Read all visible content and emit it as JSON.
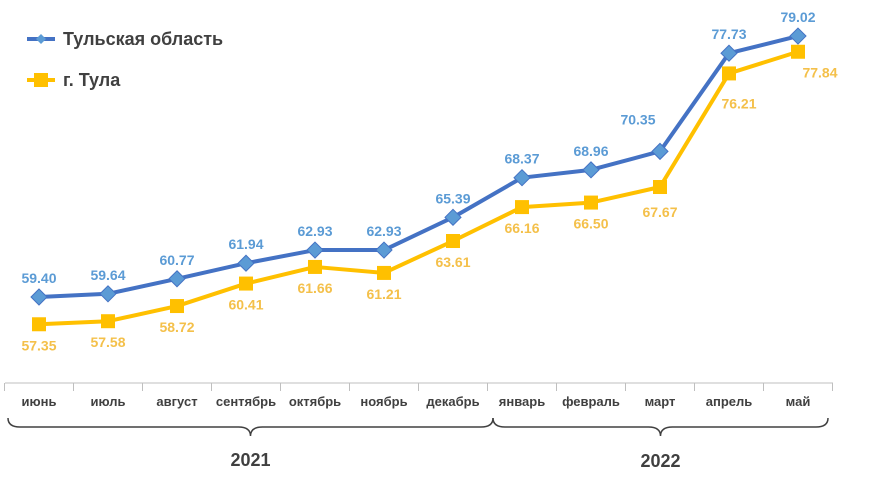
{
  "chart_data": {
    "type": "line",
    "categories": [
      "июнь",
      "июль",
      "август",
      "сентябрь",
      "октябрь",
      "ноябрь",
      "декабрь",
      "январь",
      "февраль",
      "март",
      "апрель",
      "май"
    ],
    "groups": [
      {
        "label": "2021",
        "from": 0,
        "to": 6
      },
      {
        "label": "2022",
        "from": 7,
        "to": 11
      }
    ],
    "series": [
      {
        "name": "Тульская область",
        "color": "#4472C4",
        "marker_color": "#5B9BD5",
        "label_color": "#5B9BD5",
        "marker": "diamond",
        "values": [
          59.4,
          59.64,
          60.77,
          61.94,
          62.93,
          62.93,
          65.39,
          68.37,
          68.96,
          70.35,
          77.73,
          79.02
        ],
        "labels": [
          "59.40",
          "59.64",
          "60.77",
          "61.94",
          "62.93",
          "62.93",
          "65.39",
          "68.37",
          "68.96",
          "70.35",
          "77.73",
          "79.02"
        ]
      },
      {
        "name": "г. Тула",
        "color": "#FFC000",
        "marker_color": "#FFC000",
        "label_color": "#F4C04A",
        "marker": "square",
        "values": [
          57.35,
          57.58,
          58.72,
          60.41,
          61.66,
          61.21,
          63.61,
          66.16,
          66.5,
          67.67,
          76.21,
          77.84
        ],
        "labels": [
          "57.35",
          "57.58",
          "58.72",
          "60.41",
          "61.66",
          "61.21",
          "63.61",
          "66.16",
          "66.50",
          "67.67",
          "76.21",
          "77.84"
        ]
      }
    ],
    "legend": "top-left",
    "grid": false,
    "ylim": [
      55,
      80
    ]
  }
}
